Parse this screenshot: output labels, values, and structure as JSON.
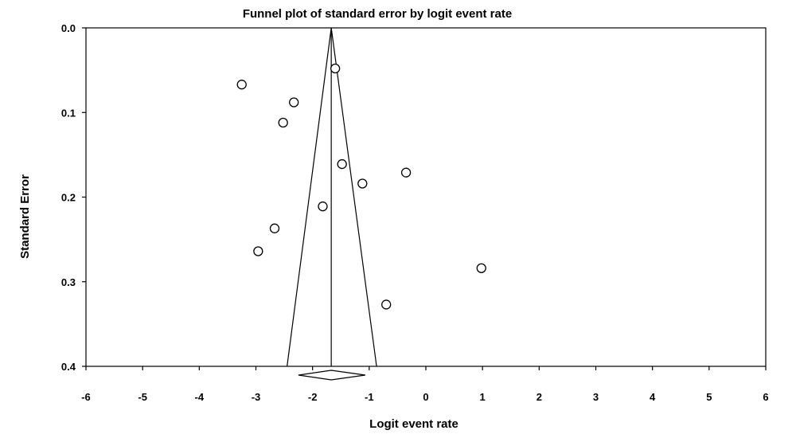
{
  "chart_data": {
    "type": "scatter",
    "title": "Funnel plot of standard error by logit event rate",
    "xlabel": "Logit event rate",
    "ylabel": "Standard Error",
    "xlim": [
      -6,
      6
    ],
    "ylim": [
      0.0,
      0.4
    ],
    "y_inverted": true,
    "x_ticks": [
      -6,
      -5,
      -4,
      -3,
      -2,
      -1,
      0,
      1,
      2,
      3,
      4,
      5,
      6
    ],
    "x_tick_labels": [
      "-6",
      "-5",
      "-4",
      "-3",
      "-2",
      "-1",
      "0",
      "1",
      "2",
      "3",
      "4",
      "5",
      "6"
    ],
    "y_ticks": [
      0.0,
      0.1,
      0.2,
      0.3,
      0.4
    ],
    "y_tick_labels": [
      "0.0",
      "0.1",
      "0.2",
      "0.3",
      "0.4"
    ],
    "pooled_estimate": -1.67,
    "funnel_bottom": [
      -2.45,
      -0.87
    ],
    "diamond": {
      "center": -1.67,
      "lower": -2.25,
      "upper": -1.07
    },
    "points": [
      {
        "x": -3.25,
        "y": 0.067
      },
      {
        "x": -1.6,
        "y": 0.048
      },
      {
        "x": -2.33,
        "y": 0.088
      },
      {
        "x": -2.52,
        "y": 0.112
      },
      {
        "x": -1.48,
        "y": 0.161
      },
      {
        "x": -0.35,
        "y": 0.171
      },
      {
        "x": -1.12,
        "y": 0.184
      },
      {
        "x": -1.82,
        "y": 0.211
      },
      {
        "x": -2.67,
        "y": 0.237
      },
      {
        "x": -2.96,
        "y": 0.264
      },
      {
        "x": 0.98,
        "y": 0.284
      },
      {
        "x": -0.7,
        "y": 0.327
      }
    ],
    "grid": false,
    "colors": {
      "axis": "#000000",
      "point_fill": "#ffffff",
      "point_stroke": "#000000",
      "background": "#ffffff"
    }
  }
}
